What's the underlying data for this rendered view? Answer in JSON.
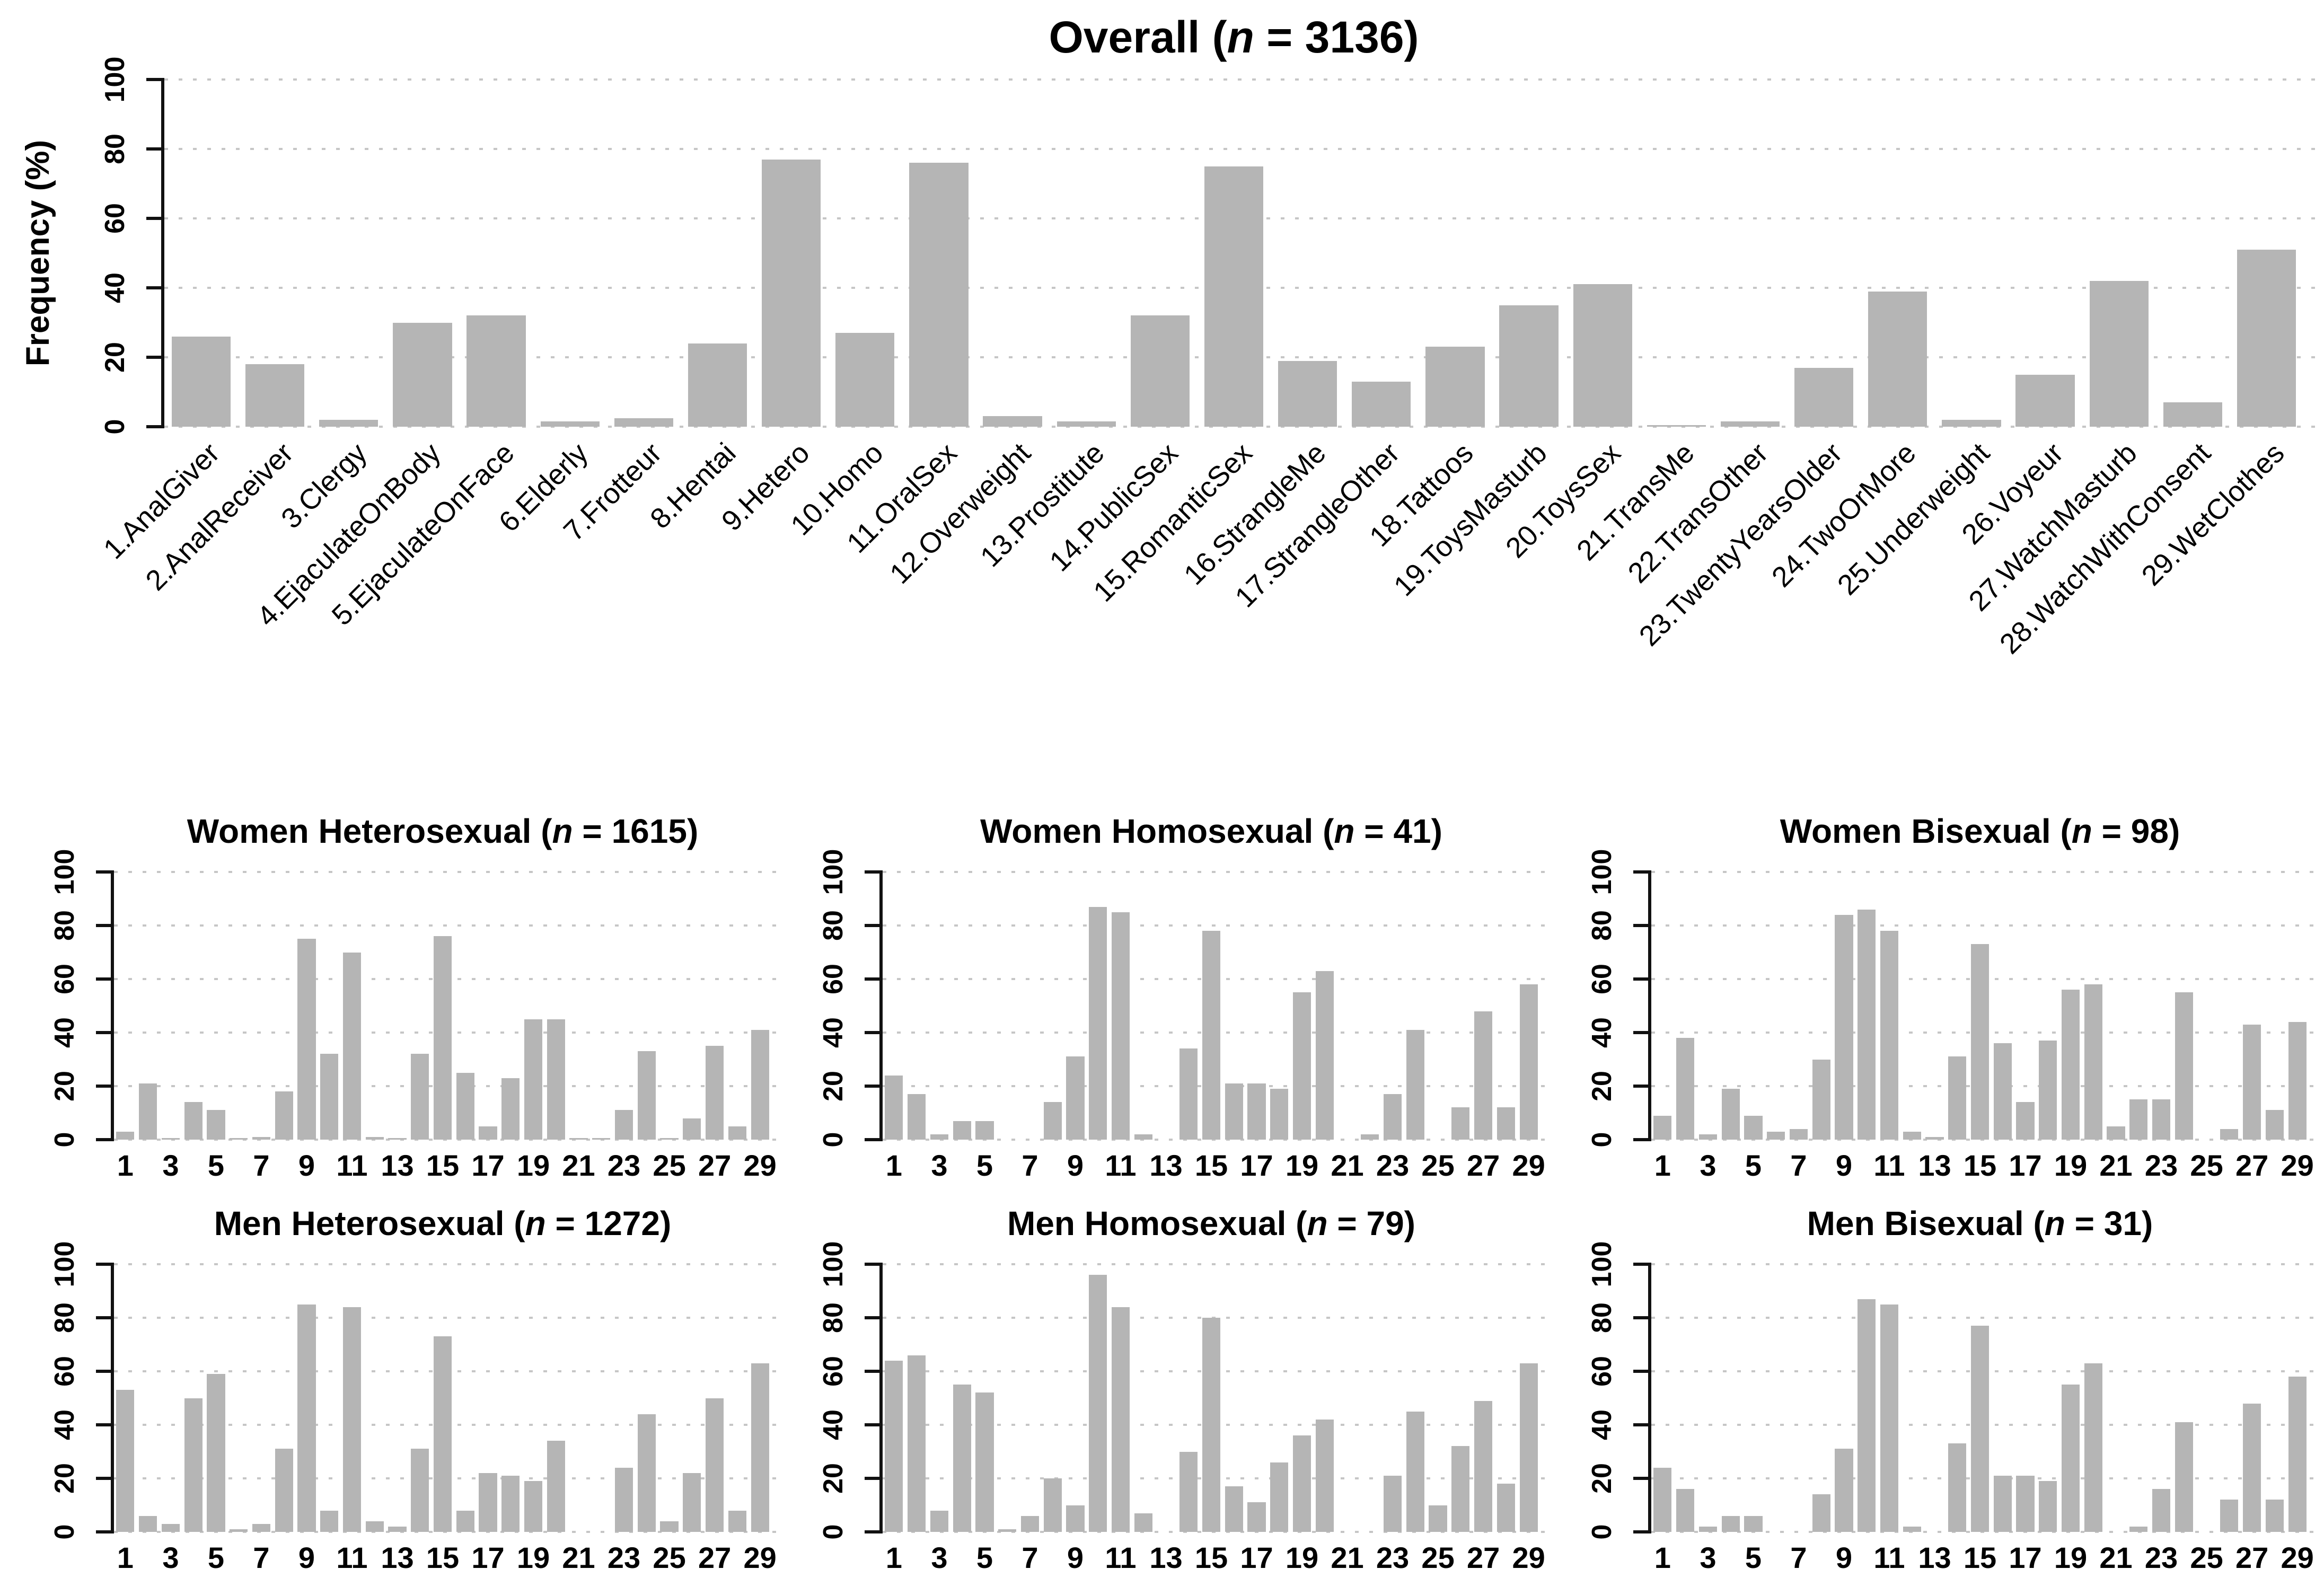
{
  "figure": {
    "background": "#ffffff",
    "bar_color": "#b5b5b5",
    "grid_color": "#c6c6c6",
    "axis_color": "#111111",
    "ylabel": "Frequency (%)",
    "n_symbol": "n",
    "title_open": " (",
    "title_eq": " = ",
    "title_close": ")"
  },
  "chart_data": {
    "type": "bar",
    "ylabel": "Frequency (%)",
    "ylim": [
      0,
      100
    ],
    "yticks": [
      0,
      20,
      40,
      60,
      80,
      100
    ],
    "grid": "dotted horizontal lines at each y tick",
    "legend": "none",
    "categories": [
      "1.AnalGiver",
      "2.AnalReceiver",
      "3.Clergy",
      "4.EjaculateOnBody",
      "5.EjaculateOnFace",
      "6.Elderly",
      "7.Frotteur",
      "8.Hentai",
      "9.Hetero",
      "10.Homo",
      "11.OralSex",
      "12.Overweight",
      "13.Prostitute",
      "14.PublicSex",
      "15.RomanticSex",
      "16.StrangleMe",
      "17.StrangleOther",
      "18.Tattoos",
      "19.ToysMasturb",
      "20.ToysSex",
      "21.TransMe",
      "22.TransOther",
      "23.TwentyYearsOlder",
      "24.TwoOrMore",
      "25.Underweight",
      "26.Voyeur",
      "27.WatchMasturb",
      "28.WatchWithConsent",
      "29.WetClothes"
    ],
    "subplot_xtick_labels": [
      "1",
      "3",
      "5",
      "7",
      "9",
      "11",
      "13",
      "15",
      "17",
      "19",
      "21",
      "23",
      "25",
      "27",
      "29"
    ],
    "charts": [
      {
        "key": "overall",
        "title": "Overall",
        "n": 3136,
        "x_axis": "full_category_labels",
        "values": [
          26,
          18,
          2,
          30,
          32,
          1.5,
          2.5,
          24,
          77,
          27,
          76,
          3,
          1.5,
          32,
          75,
          19,
          13,
          23,
          35,
          41,
          0.5,
          1.5,
          17,
          39,
          2,
          15,
          42,
          7,
          51
        ]
      },
      {
        "key": "women_heterosexual",
        "title": "Women Heterosexual",
        "n": 1615,
        "x_axis": "numeric_ticks",
        "values": [
          3,
          21,
          0.5,
          14,
          11,
          0.5,
          1,
          18,
          75,
          32,
          70,
          1,
          0.5,
          32,
          76,
          25,
          5,
          23,
          45,
          45,
          0.5,
          0.5,
          11,
          33,
          0.5,
          8,
          35,
          5,
          41
        ]
      },
      {
        "key": "women_homosexual",
        "title": "Women Homosexual",
        "n": 41,
        "x_axis": "numeric_ticks",
        "values": [
          24,
          17,
          2,
          7,
          7,
          0,
          0,
          14,
          31,
          87,
          85,
          2,
          0,
          34,
          78,
          21,
          21,
          19,
          55,
          63,
          0,
          2,
          17,
          41,
          0,
          12,
          48,
          12,
          58
        ]
      },
      {
        "key": "women_bisexual",
        "title": "Women Bisexual",
        "n": 98,
        "x_axis": "numeric_ticks",
        "values": [
          9,
          38,
          2,
          19,
          9,
          3,
          4,
          30,
          84,
          86,
          78,
          3,
          1,
          31,
          73,
          36,
          14,
          37,
          56,
          58,
          5,
          15,
          15,
          55,
          0,
          4,
          43,
          11,
          44
        ]
      },
      {
        "key": "men_heterosexual",
        "title": "Men Heterosexual",
        "n": 1272,
        "x_axis": "numeric_ticks",
        "values": [
          53,
          6,
          3,
          50,
          59,
          1,
          3,
          31,
          85,
          8,
          84,
          4,
          2,
          31,
          73,
          8,
          22,
          21,
          19,
          34,
          0,
          0,
          24,
          44,
          4,
          22,
          50,
          8,
          63
        ]
      },
      {
        "key": "men_homosexual",
        "title": "Men Homosexual",
        "n": 79,
        "x_axis": "numeric_ticks",
        "values": [
          64,
          66,
          8,
          55,
          52,
          1,
          6,
          20,
          10,
          96,
          84,
          7,
          0,
          30,
          80,
          17,
          11,
          26,
          36,
          42,
          0,
          0,
          21,
          45,
          10,
          32,
          49,
          18,
          63
        ]
      },
      {
        "key": "men_bisexual",
        "title": "Men Bisexual",
        "n": 31,
        "x_axis": "numeric_ticks",
        "values": [
          24,
          16,
          2,
          6,
          6,
          0,
          0,
          14,
          31,
          87,
          85,
          2,
          0,
          33,
          77,
          21,
          21,
          19,
          55,
          63,
          0,
          2,
          16,
          41,
          0,
          12,
          48,
          12,
          58
        ]
      }
    ]
  }
}
